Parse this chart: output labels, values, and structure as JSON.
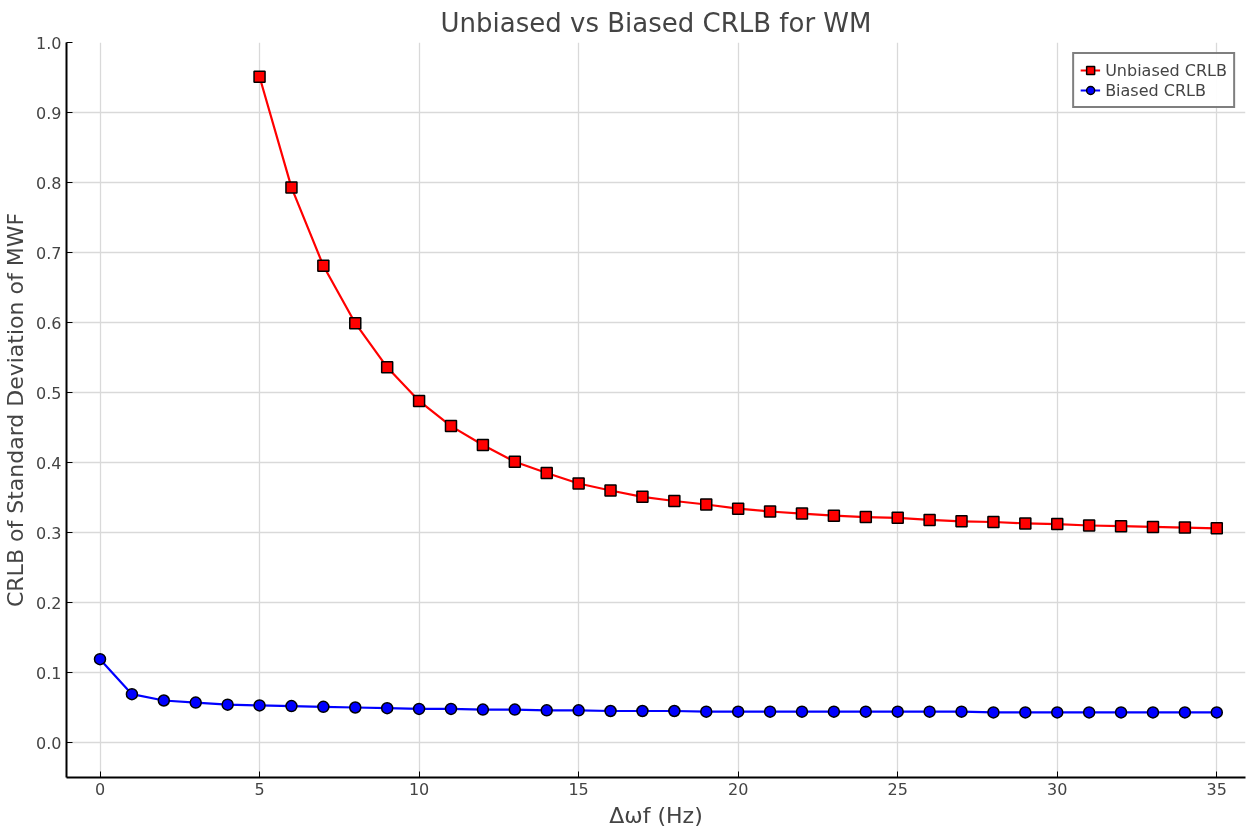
{
  "chart_data": {
    "type": "line",
    "title": "Unbiased vs Biased CRLB for WM",
    "xlabel": "Δωf (Hz)",
    "ylabel": "CRLB of Standard Deviation of MWF",
    "xlim": [
      -1.05,
      35.9
    ],
    "ylim": [
      -0.05,
      1.0
    ],
    "xticks": [
      0,
      5,
      10,
      15,
      20,
      25,
      30,
      35
    ],
    "yticks": [
      {
        "value": 0,
        "label": "0.0"
      },
      {
        "value": 0.1,
        "label": "0.1"
      },
      {
        "value": 0.2,
        "label": "0.2"
      },
      {
        "value": 0.3,
        "label": "0.3"
      },
      {
        "value": 0.4,
        "label": "0.4"
      },
      {
        "value": 0.5,
        "label": "0.5"
      },
      {
        "value": 0.6,
        "label": "0.6"
      },
      {
        "value": 0.7,
        "label": "0.7"
      },
      {
        "value": 0.8,
        "label": "0.8"
      },
      {
        "value": 0.9,
        "label": "0.9"
      },
      {
        "value": 1.0,
        "label": "1.0"
      }
    ],
    "grid": true,
    "legend": "top right",
    "line_style": "solid",
    "series": [
      {
        "name": "Unbiased CRLB",
        "color": "#ff0000",
        "marker": "square",
        "x": [
          5,
          6,
          7,
          8,
          9,
          10,
          11,
          12,
          13,
          14,
          15,
          16,
          17,
          18,
          19,
          20,
          21,
          22,
          23,
          24,
          25,
          26,
          27,
          28,
          29,
          30,
          31,
          32,
          33,
          34,
          35
        ],
        "values": [
          0.951,
          0.793,
          0.681,
          0.599,
          0.536,
          0.488,
          0.452,
          0.425,
          0.401,
          0.385,
          0.37,
          0.36,
          0.351,
          0.345,
          0.34,
          0.334,
          0.33,
          0.327,
          0.324,
          0.322,
          0.321,
          0.318,
          0.316,
          0.315,
          0.313,
          0.312,
          0.31,
          0.309,
          0.308,
          0.307,
          0.306
        ]
      },
      {
        "name": "Biased CRLB",
        "color": "#0000ff",
        "marker": "circle",
        "x": [
          0,
          1,
          2,
          3,
          4,
          5,
          6,
          7,
          8,
          9,
          10,
          11,
          12,
          13,
          14,
          15,
          16,
          17,
          18,
          19,
          20,
          21,
          22,
          23,
          24,
          25,
          26,
          27,
          28,
          29,
          30,
          31,
          32,
          33,
          34,
          35
        ],
        "values": [
          0.119,
          0.069,
          0.06,
          0.057,
          0.054,
          0.053,
          0.052,
          0.051,
          0.05,
          0.049,
          0.048,
          0.048,
          0.047,
          0.047,
          0.046,
          0.046,
          0.045,
          0.045,
          0.045,
          0.044,
          0.044,
          0.044,
          0.044,
          0.044,
          0.044,
          0.044,
          0.044,
          0.044,
          0.043,
          0.043,
          0.043,
          0.043,
          0.043,
          0.043,
          0.043,
          0.043
        ]
      }
    ]
  }
}
